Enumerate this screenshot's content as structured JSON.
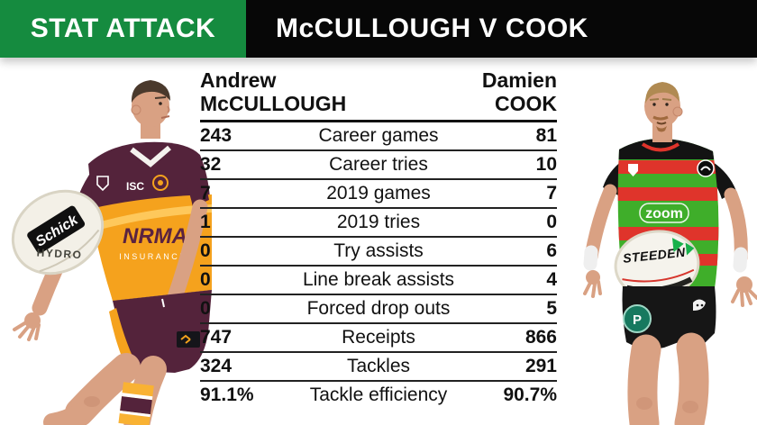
{
  "header": {
    "badge": "STAT ATTACK",
    "title": "McCULLOUGH V COOK"
  },
  "table": {
    "left_player": {
      "first": "Andrew",
      "last": "McCULLOUGH"
    },
    "right_player": {
      "first": "Damien",
      "last": "COOK"
    },
    "rows": [
      {
        "left": "243",
        "stat": "Career games",
        "right": "81"
      },
      {
        "left": "32",
        "stat": "Career tries",
        "right": "10"
      },
      {
        "left": "7",
        "stat": "2019 games",
        "right": "7"
      },
      {
        "left": "1",
        "stat": "2019 tries",
        "right": "0"
      },
      {
        "left": "0",
        "stat": "Try assists",
        "right": "6"
      },
      {
        "left": "0",
        "stat": "Line break assists",
        "right": "4"
      },
      {
        "left": "0",
        "stat": "Forced drop outs",
        "right": "5"
      },
      {
        "left": "747",
        "stat": "Receipts",
        "right": "866"
      },
      {
        "left": "324",
        "stat": "Tackles",
        "right": "291"
      },
      {
        "left": "91.1%",
        "stat": "Tackle efficiency",
        "right": "90.7%"
      }
    ]
  },
  "chart_data": {
    "type": "table",
    "title": "STAT ATTACK — McCULLOUGH V COOK",
    "categories": [
      "Career games",
      "Career tries",
      "2019 games",
      "2019 tries",
      "Try assists",
      "Line break assists",
      "Forced drop outs",
      "Receipts",
      "Tackles",
      "Tackle efficiency"
    ],
    "series": [
      {
        "name": "Andrew McCullough",
        "values": [
          "243",
          "32",
          "7",
          "1",
          "0",
          "0",
          "0",
          "747",
          "324",
          "91.1%"
        ]
      },
      {
        "name": "Damien Cook",
        "values": [
          "81",
          "10",
          "7",
          "0",
          "6",
          "4",
          "5",
          "866",
          "291",
          "90.7%"
        ]
      }
    ],
    "legend_position": "top",
    "grid": "horizontal-rules"
  },
  "left_photo": {
    "player": "Andrew McCullough",
    "jersey_sponsor": "ISC",
    "chest_sponsor": "NRMA",
    "chest_sponsor_sub": "INSURANCE",
    "ball_brand": "Schick",
    "ball_model": "HYDRO"
  },
  "right_photo": {
    "player": "Damien Cook",
    "jersey_sponsor": "zoom",
    "ball_brand": "STEEDEN",
    "shorts_logo": "P"
  },
  "colors": {
    "header_green": "#158b3f",
    "header_black": "#070707",
    "broncos_maroon": "#54233b",
    "broncos_gold": "#f5a21d",
    "rabbitohs_green": "#3fae2a",
    "rabbitohs_red": "#df342b",
    "skin": "#d9a183"
  }
}
